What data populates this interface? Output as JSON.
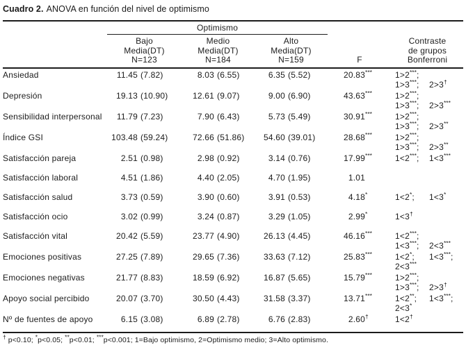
{
  "title": {
    "number": "Cuadro 2.",
    "caption": "ANOVA en función del nivel de optimismo"
  },
  "header": {
    "group_title": "Optimismo",
    "columns": [
      {
        "l1": "Bajo",
        "l2": "Media(DT)",
        "l3": "N=123"
      },
      {
        "l1": "Medio",
        "l2": "Media(DT)",
        "l3": "N=184"
      },
      {
        "l1": "Alto",
        "l2": "Media(DT)",
        "l3": "N=159"
      }
    ],
    "f_label": "F",
    "contrast": {
      "l1": "Contraste",
      "l2": "de grupos",
      "l3": "Bonferroni"
    }
  },
  "rows": [
    {
      "label": "Ansiedad",
      "bajo": {
        "m": "11.45",
        "sd": "(7.82)"
      },
      "medio": {
        "m": "8.03",
        "sd": "(6.55)"
      },
      "alto": {
        "m": "6.35",
        "sd": "(5.52)"
      },
      "f": "20.83",
      "fm": "***",
      "c1a": "1>2***;",
      "c1b": "",
      "c2a": "1>3***;",
      "c2b": "2>3†"
    },
    {
      "label": "Depresión",
      "bajo": {
        "m": "19.13",
        "sd": "(10.90)"
      },
      "medio": {
        "m": "12.61",
        "sd": "(9.07)"
      },
      "alto": {
        "m": "9.00",
        "sd": "(6.90)"
      },
      "f": "43.63",
      "fm": "***",
      "c1a": "1>2***;",
      "c1b": "",
      "c2a": "1>3***;",
      "c2b": "2>3***"
    },
    {
      "label": "Sensibilidad interpersonal",
      "bajo": {
        "m": "11.79",
        "sd": "(7.23)"
      },
      "medio": {
        "m": "7.90",
        "sd": "(6.43)"
      },
      "alto": {
        "m": "5.73",
        "sd": "(5.49)"
      },
      "f": "30.91",
      "fm": "***",
      "c1a": "1>2***;",
      "c1b": "",
      "c2a": "1>3***;",
      "c2b": "2>3**"
    },
    {
      "label": "Índice GSI",
      "bajo": {
        "m": "103.48",
        "sd": "(59.24)"
      },
      "medio": {
        "m": "72.66",
        "sd": "(51.86)"
      },
      "alto": {
        "m": "54.60",
        "sd": "(39.01)"
      },
      "f": "28.68",
      "fm": "***",
      "c1a": "1>2***;",
      "c1b": "",
      "c2a": "1>3***;",
      "c2b": "2>3**"
    },
    {
      "label": "Satisfacción pareja",
      "bajo": {
        "m": "2.51",
        "sd": "(0.98)"
      },
      "medio": {
        "m": "2.98",
        "sd": "(0.92)"
      },
      "alto": {
        "m": "3.14",
        "sd": "(0.76)"
      },
      "f": "17.99",
      "fm": "***",
      "c1a": "1<2***;",
      "c1b": "1<3***",
      "c2a": "",
      "c2b": ""
    },
    {
      "label": "Satisfacción laboral",
      "bajo": {
        "m": "4.51",
        "sd": "(1.86)"
      },
      "medio": {
        "m": "4.40",
        "sd": "(2.05)"
      },
      "alto": {
        "m": "4.70",
        "sd": "(1.95)"
      },
      "f": "1.01",
      "fm": "",
      "c1a": "",
      "c1b": "",
      "c2a": "",
      "c2b": ""
    },
    {
      "label": "Satisfacción salud",
      "bajo": {
        "m": "3.73",
        "sd": "(0.59)"
      },
      "medio": {
        "m": "3.90",
        "sd": "(0.60)"
      },
      "alto": {
        "m": "3.91",
        "sd": "(0.53)"
      },
      "f": "4.18",
      "fm": "*",
      "c1a": "1<2*;",
      "c1b": "1<3*",
      "c2a": "",
      "c2b": ""
    },
    {
      "label": "Satisfacción ocio",
      "bajo": {
        "m": "3.02",
        "sd": "(0.99)"
      },
      "medio": {
        "m": "3.24",
        "sd": "(0.87)"
      },
      "alto": {
        "m": "3.29",
        "sd": "(1.05)"
      },
      "f": "2.99",
      "fm": "*",
      "c1a": "1<3†",
      "c1b": "",
      "c2a": "",
      "c2b": ""
    },
    {
      "label": "Satisfacción vital",
      "bajo": {
        "m": "20.42",
        "sd": "(5.59)"
      },
      "medio": {
        "m": "23.77",
        "sd": "(4.90)"
      },
      "alto": {
        "m": "26.13",
        "sd": "(4.45)"
      },
      "f": "46.16",
      "fm": "***",
      "c1a": "1<2***;",
      "c1b": "",
      "c2a": "1<3***;",
      "c2b": "2<3***"
    },
    {
      "label": "Emociones positivas",
      "bajo": {
        "m": "27.25",
        "sd": "(7.89)"
      },
      "medio": {
        "m": "29.65",
        "sd": "(7.36)"
      },
      "alto": {
        "m": "33.63",
        "sd": "(7.12)"
      },
      "f": "25.83",
      "fm": "***",
      "c1a": "1<2*;",
      "c1b": "1<3***;",
      "c2a": "2<3***",
      "c2b": ""
    },
    {
      "label": "Emociones negativas",
      "bajo": {
        "m": "21.77",
        "sd": "(8.83)"
      },
      "medio": {
        "m": "18.59",
        "sd": "(6.92)"
      },
      "alto": {
        "m": "16.87",
        "sd": "(5.65)"
      },
      "f": "15.79",
      "fm": "***",
      "c1a": "1>2***;",
      "c1b": "",
      "c2a": "1>3***;",
      "c2b": "2>3†"
    },
    {
      "label": "Apoyo social percibido",
      "bajo": {
        "m": "20.07",
        "sd": "(3.70)"
      },
      "medio": {
        "m": "30.50",
        "sd": "(4.43)"
      },
      "alto": {
        "m": "31.58",
        "sd": "(3.37)"
      },
      "f": "13.71",
      "fm": "***",
      "c1a": "1<2**;",
      "c1b": "1<3***;",
      "c2a": "2<3*",
      "c2b": ""
    },
    {
      "label": "Nº de fuentes de apoyo",
      "bajo": {
        "m": "6.15",
        "sd": "(3.08)"
      },
      "medio": {
        "m": "6.89",
        "sd": "(2.78)"
      },
      "alto": {
        "m": "6.76",
        "sd": "(2.83)"
      },
      "f": "2.60",
      "fm": "†",
      "c1a": "1<2†",
      "c1b": "",
      "c2a": "",
      "c2b": ""
    }
  ],
  "footnote": "† p<0.10; *p<0.05; **p<0.01; ***p<0.001; 1=Bajo optimismo, 2=Optimismo medio; 3=Alto optimismo."
}
